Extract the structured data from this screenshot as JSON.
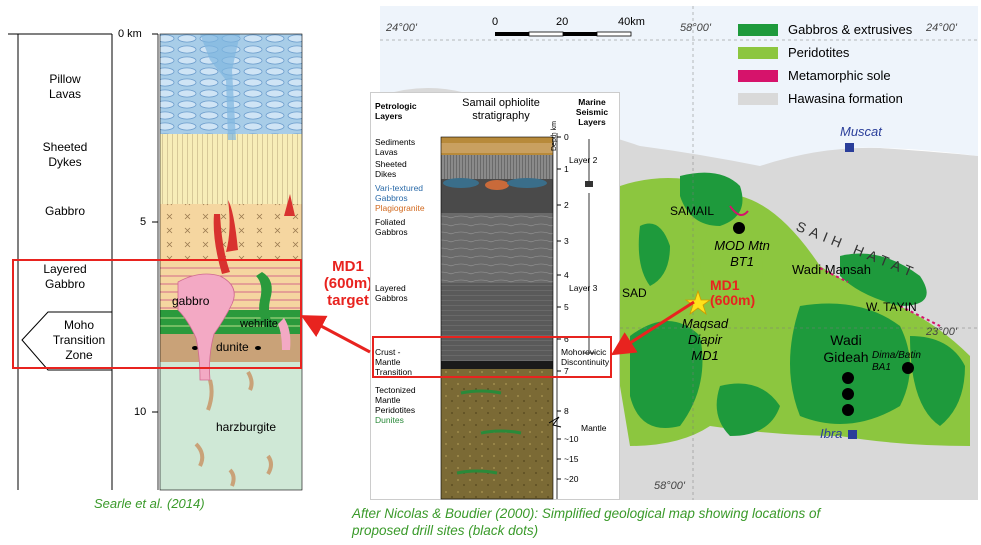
{
  "column_left": {
    "layers": [
      "Pillow\nLavas",
      "Sheeted\nDykes",
      "Gabbro",
      "Layered\nGabbro",
      "Moho\nTransition\nZone"
    ],
    "depth_ticks": [
      "0 km",
      "5",
      "10"
    ],
    "rock_labels": [
      "gabbro",
      "wehrlite",
      "dunite",
      "harzburgite"
    ],
    "caption": "Searle et al. (2014)"
  },
  "target_label": "MD1\n(600m)\ntarget",
  "strat": {
    "title": "Samail ophiolite\nstratigraphy",
    "left_header": "Petrologic\nLayers",
    "right_header": "Marine\nSeismic\nLayers",
    "axis_label": "Depth km",
    "layers": [
      {
        "text": "Sediments",
        "color": "#000000"
      },
      {
        "text": "Lavas",
        "color": "#000000"
      },
      {
        "text": "Sheeted\nDikes",
        "color": "#000000"
      },
      {
        "text": "Vari-textured\nGabbros",
        "color": "#2a6aa8"
      },
      {
        "text": "Plagiogranite",
        "color": "#d2691e"
      },
      {
        "text": "Foliated\nGabbros",
        "color": "#000000"
      },
      {
        "text": "Layered\nGabbros",
        "color": "#000000"
      },
      {
        "text": "Crust -\nMantle\nTransition",
        "color": "#000000"
      },
      {
        "text": "Tectonized\nMantle\nPeridotites",
        "color": "#000000"
      },
      {
        "text": "Dunites",
        "color": "#2a8a3a"
      }
    ],
    "ticks": [
      "0",
      "1",
      "2",
      "3",
      "4",
      "5",
      "6",
      "7",
      "8",
      "~10",
      "~15",
      "~20"
    ],
    "seismic": [
      "Layer 2",
      "Layer 3",
      "Mohorovicic\nDiscontinuity",
      "Mantle"
    ]
  },
  "map": {
    "coords": [
      "24°00'",
      "58°00'",
      "24°00'",
      "23°00'",
      "58°00'"
    ],
    "scale": [
      "0",
      "20",
      "40km"
    ],
    "legend": [
      {
        "label": "Gabbros & extrusives",
        "color": "#1e9a3c"
      },
      {
        "label": "Peridotites",
        "color": "#8cc63f"
      },
      {
        "label": "Metamorphic sole",
        "color": "#d6136b"
      },
      {
        "label": "Hawasina formation",
        "color": "#d9d9d9"
      }
    ],
    "places": [
      "Muscat",
      "SAMAIL",
      "SAIH HATAT",
      "MOD Mtn\nBT1",
      "Wadi Mansah",
      "SAD",
      "W. TAYIN",
      "Maqsad\nDiapir\nMD1",
      "Wadi\nGideah",
      "Dima/Batin\nBA1",
      "Ibra"
    ],
    "md1_label": "MD1\n(600m)"
  },
  "caption_right": "After Nicolas & Boudier (2000): Simplified geological map showing locations of\nproposed drill sites (black dots)"
}
